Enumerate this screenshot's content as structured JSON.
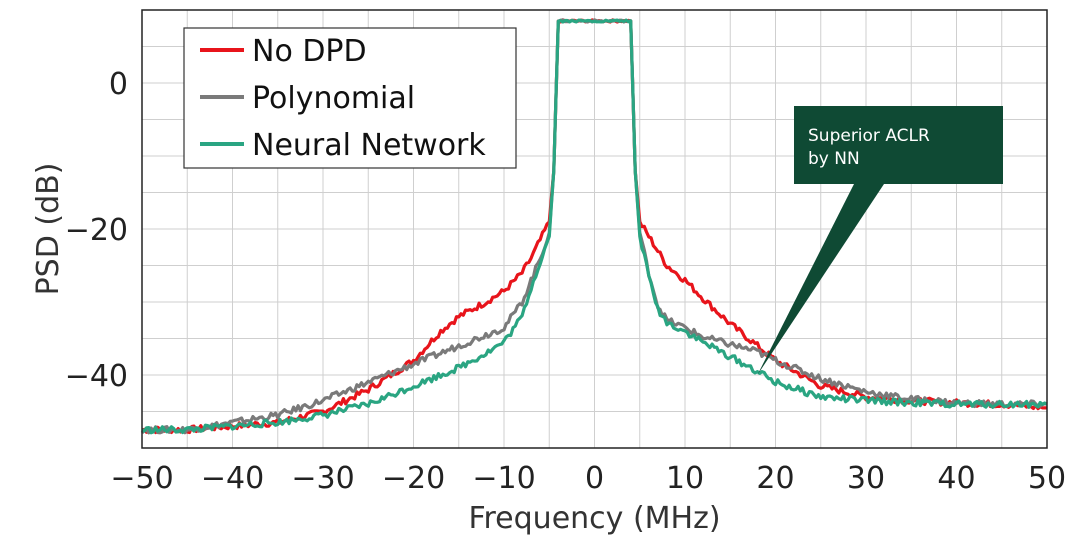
{
  "chart_data": {
    "type": "line",
    "title": "",
    "xlabel": "Frequency (MHz)",
    "ylabel": "PSD (dB)",
    "xlim": [
      -50,
      50
    ],
    "ylim": [
      -50,
      10
    ],
    "xticks": [
      -50,
      -40,
      -30,
      -20,
      -10,
      0,
      10,
      20,
      30,
      40,
      50
    ],
    "yticks": [
      -40,
      -20,
      0
    ],
    "xtick_labels": [
      "−50",
      "−40",
      "−30",
      "−20",
      "−10",
      "0",
      "10",
      "20",
      "30",
      "40",
      "50"
    ],
    "ytick_labels": [
      "−40",
      "−20",
      "0"
    ],
    "grid": true,
    "legend_position": "top-left",
    "series": [
      {
        "name": "No DPD",
        "color": "#e8141b",
        "x": [
          -50,
          -45,
          -40,
          -35,
          -30,
          -25,
          -20,
          -17,
          -15,
          -12,
          -10,
          -8,
          -7,
          -6,
          -5,
          -4.5,
          -4,
          0,
          4,
          4.5,
          5,
          6,
          7,
          8,
          10,
          12,
          15,
          18,
          20,
          25,
          30,
          35,
          40,
          45,
          50
        ],
        "y": [
          -47.5,
          -47.5,
          -47,
          -46.5,
          -45,
          -42,
          -38,
          -34,
          -32,
          -30,
          -28.5,
          -26,
          -24,
          -21.5,
          -19,
          -12,
          8.5,
          8.5,
          8.5,
          -12,
          -19,
          -21,
          -23,
          -25,
          -27,
          -29.5,
          -33,
          -36,
          -38,
          -41.5,
          -43,
          -43.5,
          -43.8,
          -44,
          -44.5
        ]
      },
      {
        "name": "Polynomial",
        "color": "#7a7a7a",
        "x": [
          -50,
          -45,
          -40,
          -35,
          -30,
          -25,
          -20,
          -15,
          -12,
          -10,
          -8,
          -7,
          -6,
          -5,
          -4.5,
          -4,
          0,
          4,
          4.5,
          5,
          6,
          7,
          8,
          10,
          12,
          15,
          18,
          20,
          25,
          30,
          35,
          40,
          45,
          50
        ],
        "y": [
          -47.5,
          -47.5,
          -46.5,
          -45.5,
          -43.5,
          -41,
          -38.5,
          -36,
          -34.5,
          -33.5,
          -30,
          -27,
          -24,
          -20.5,
          -12,
          8.5,
          8.5,
          8.5,
          -12,
          -20.5,
          -26,
          -30.5,
          -32.5,
          -33.5,
          -34.8,
          -35.8,
          -36.8,
          -38,
          -40.5,
          -42.3,
          -43.3,
          -43.8,
          -44,
          -44
        ]
      },
      {
        "name": "Neural Network",
        "color": "#2aa582",
        "x": [
          -50,
          -45,
          -40,
          -35,
          -30,
          -25,
          -20,
          -15,
          -12,
          -10,
          -8,
          -7,
          -6,
          -5,
          -4.5,
          -4,
          0,
          4,
          4.5,
          5,
          6,
          7,
          8,
          10,
          12,
          15,
          18,
          20,
          25,
          30,
          35,
          40,
          45,
          50
        ],
        "y": [
          -47.5,
          -47.5,
          -47,
          -46.5,
          -45.5,
          -44,
          -41.5,
          -39,
          -37,
          -35.5,
          -32,
          -28,
          -24.5,
          -21,
          -12,
          8.5,
          8.5,
          8.5,
          -12,
          -21,
          -26.5,
          -31,
          -32.8,
          -34,
          -35.5,
          -37.5,
          -39.5,
          -41,
          -43,
          -43.5,
          -43.8,
          -44,
          -44,
          -44
        ]
      }
    ],
    "annotations": [
      {
        "text_lines": [
          "Superior ACLR",
          "by NN"
        ],
        "target_x": 18,
        "target_y": -40,
        "background": "#0f4a34"
      }
    ]
  }
}
